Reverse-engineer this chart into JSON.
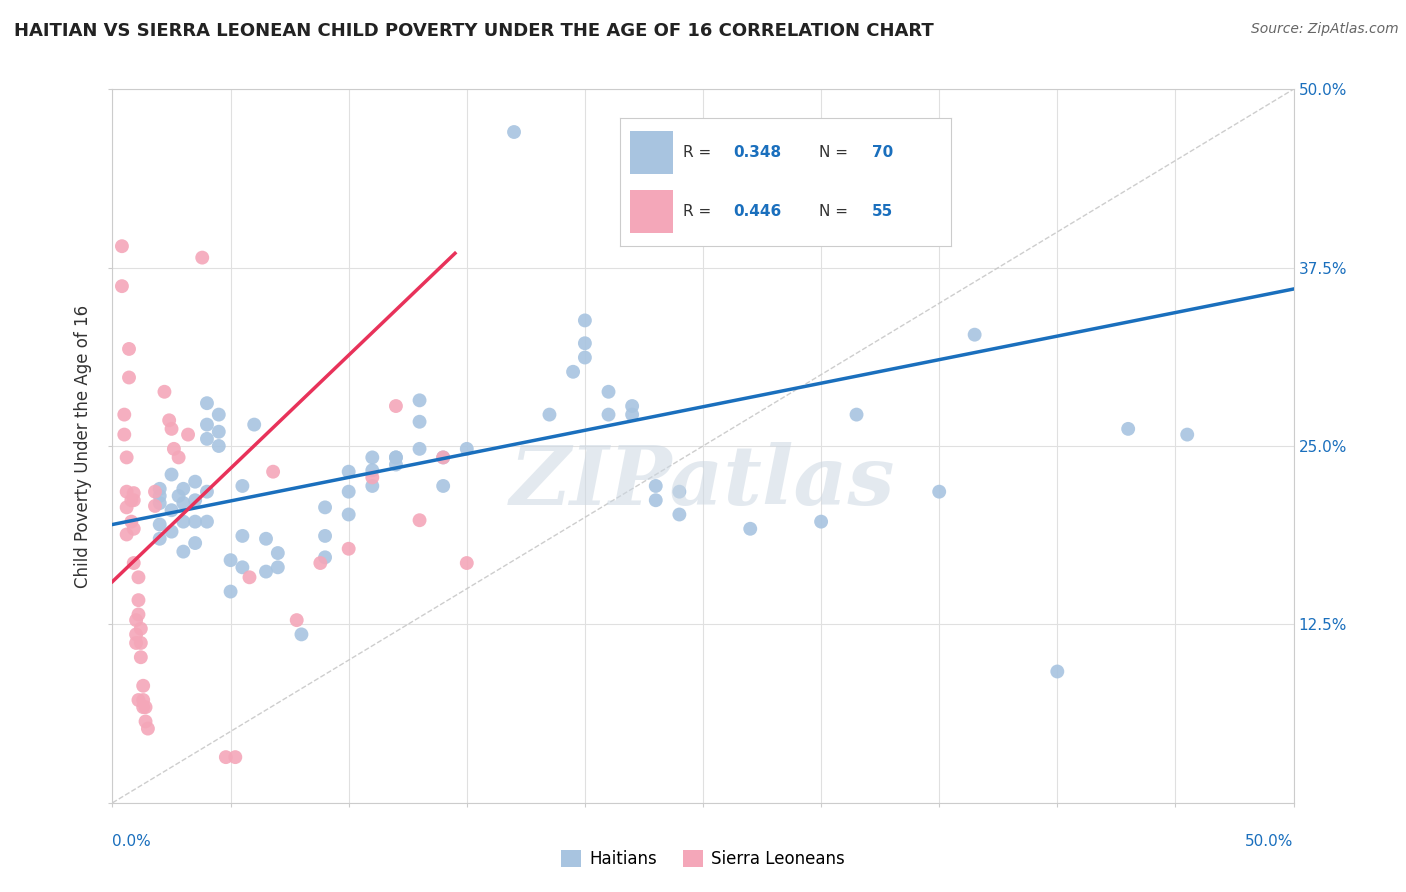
{
  "title": "HAITIAN VS SIERRA LEONEAN CHILD POVERTY UNDER THE AGE OF 16 CORRELATION CHART",
  "source": "Source: ZipAtlas.com",
  "ylabel": "Child Poverty Under the Age of 16",
  "xlim": [
    0.0,
    0.5
  ],
  "ylim": [
    0.0,
    0.5
  ],
  "ytick_vals": [
    0.0,
    0.125,
    0.25,
    0.375,
    0.5
  ],
  "ytick_labels_right": [
    "",
    "12.5%",
    "25.0%",
    "37.5%",
    "50.0%"
  ],
  "color_blue": "#a8c4e0",
  "color_pink": "#f4a7b9",
  "trendline_blue": "#1a6fbd",
  "trendline_pink": "#e8325a",
  "trendline_gray": "#c8c8c8",
  "background": "#ffffff",
  "grid_color": "#e0e0e0",
  "blue_scatter": [
    [
      0.02,
      0.215
    ],
    [
      0.02,
      0.22
    ],
    [
      0.02,
      0.195
    ],
    [
      0.02,
      0.185
    ],
    [
      0.02,
      0.21
    ],
    [
      0.025,
      0.23
    ],
    [
      0.025,
      0.205
    ],
    [
      0.025,
      0.19
    ],
    [
      0.028,
      0.215
    ],
    [
      0.03,
      0.22
    ],
    [
      0.03,
      0.197
    ],
    [
      0.03,
      0.21
    ],
    [
      0.03,
      0.176
    ],
    [
      0.035,
      0.225
    ],
    [
      0.035,
      0.212
    ],
    [
      0.035,
      0.197
    ],
    [
      0.035,
      0.182
    ],
    [
      0.04,
      0.28
    ],
    [
      0.04,
      0.265
    ],
    [
      0.04,
      0.255
    ],
    [
      0.04,
      0.218
    ],
    [
      0.04,
      0.197
    ],
    [
      0.045,
      0.272
    ],
    [
      0.045,
      0.26
    ],
    [
      0.045,
      0.25
    ],
    [
      0.05,
      0.148
    ],
    [
      0.05,
      0.17
    ],
    [
      0.055,
      0.222
    ],
    [
      0.055,
      0.187
    ],
    [
      0.055,
      0.165
    ],
    [
      0.06,
      0.265
    ],
    [
      0.065,
      0.162
    ],
    [
      0.065,
      0.185
    ],
    [
      0.07,
      0.175
    ],
    [
      0.07,
      0.165
    ],
    [
      0.08,
      0.118
    ],
    [
      0.09,
      0.207
    ],
    [
      0.09,
      0.187
    ],
    [
      0.09,
      0.172
    ],
    [
      0.1,
      0.232
    ],
    [
      0.1,
      0.218
    ],
    [
      0.1,
      0.202
    ],
    [
      0.11,
      0.233
    ],
    [
      0.11,
      0.242
    ],
    [
      0.11,
      0.222
    ],
    [
      0.12,
      0.242
    ],
    [
      0.12,
      0.237
    ],
    [
      0.12,
      0.242
    ],
    [
      0.13,
      0.282
    ],
    [
      0.13,
      0.267
    ],
    [
      0.13,
      0.248
    ],
    [
      0.14,
      0.242
    ],
    [
      0.14,
      0.222
    ],
    [
      0.15,
      0.248
    ],
    [
      0.17,
      0.47
    ],
    [
      0.185,
      0.272
    ],
    [
      0.195,
      0.302
    ],
    [
      0.2,
      0.338
    ],
    [
      0.2,
      0.322
    ],
    [
      0.2,
      0.312
    ],
    [
      0.21,
      0.288
    ],
    [
      0.21,
      0.272
    ],
    [
      0.22,
      0.278
    ],
    [
      0.22,
      0.272
    ],
    [
      0.23,
      0.222
    ],
    [
      0.23,
      0.212
    ],
    [
      0.24,
      0.218
    ],
    [
      0.24,
      0.202
    ],
    [
      0.27,
      0.192
    ],
    [
      0.3,
      0.197
    ],
    [
      0.315,
      0.272
    ],
    [
      0.35,
      0.218
    ],
    [
      0.365,
      0.328
    ],
    [
      0.4,
      0.092
    ],
    [
      0.43,
      0.262
    ],
    [
      0.455,
      0.258
    ]
  ],
  "pink_scatter": [
    [
      0.004,
      0.39
    ],
    [
      0.004,
      0.362
    ],
    [
      0.005,
      0.272
    ],
    [
      0.005,
      0.258
    ],
    [
      0.006,
      0.242
    ],
    [
      0.006,
      0.218
    ],
    [
      0.006,
      0.207
    ],
    [
      0.006,
      0.188
    ],
    [
      0.007,
      0.318
    ],
    [
      0.007,
      0.298
    ],
    [
      0.008,
      0.212
    ],
    [
      0.008,
      0.197
    ],
    [
      0.009,
      0.217
    ],
    [
      0.009,
      0.212
    ],
    [
      0.009,
      0.192
    ],
    [
      0.009,
      0.168
    ],
    [
      0.01,
      0.128
    ],
    [
      0.01,
      0.118
    ],
    [
      0.01,
      0.112
    ],
    [
      0.011,
      0.158
    ],
    [
      0.011,
      0.142
    ],
    [
      0.011,
      0.132
    ],
    [
      0.011,
      0.072
    ],
    [
      0.012,
      0.122
    ],
    [
      0.012,
      0.112
    ],
    [
      0.012,
      0.102
    ],
    [
      0.013,
      0.082
    ],
    [
      0.013,
      0.072
    ],
    [
      0.013,
      0.067
    ],
    [
      0.014,
      0.067
    ],
    [
      0.014,
      0.057
    ],
    [
      0.015,
      0.052
    ],
    [
      0.018,
      0.218
    ],
    [
      0.018,
      0.208
    ],
    [
      0.022,
      0.288
    ],
    [
      0.024,
      0.268
    ],
    [
      0.025,
      0.262
    ],
    [
      0.026,
      0.248
    ],
    [
      0.028,
      0.242
    ],
    [
      0.032,
      0.258
    ],
    [
      0.038,
      0.382
    ],
    [
      0.048,
      0.032
    ],
    [
      0.052,
      0.032
    ],
    [
      0.058,
      0.158
    ],
    [
      0.068,
      0.232
    ],
    [
      0.078,
      0.128
    ],
    [
      0.088,
      0.168
    ],
    [
      0.1,
      0.178
    ],
    [
      0.11,
      0.228
    ],
    [
      0.12,
      0.278
    ],
    [
      0.13,
      0.198
    ],
    [
      0.14,
      0.242
    ],
    [
      0.15,
      0.168
    ]
  ],
  "blue_trend_x": [
    0.0,
    0.5
  ],
  "blue_trend_y": [
    0.195,
    0.36
  ],
  "pink_trend_x": [
    0.0,
    0.145
  ],
  "pink_trend_y": [
    0.155,
    0.385
  ],
  "gray_trend_x": [
    0.0,
    0.5
  ],
  "gray_trend_y": [
    0.0,
    0.5
  ],
  "watermark": "ZIPatlas",
  "legend_label1": "Haitians",
  "legend_label2": "Sierra Leoneans"
}
